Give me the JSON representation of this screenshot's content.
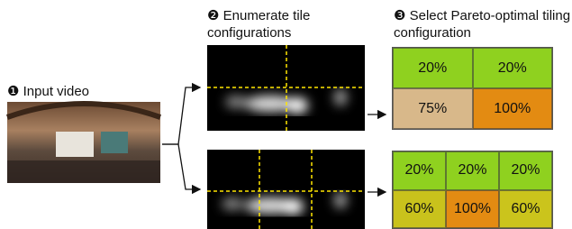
{
  "steps": [
    {
      "marker": "❶",
      "label": "Input video"
    },
    {
      "marker": "❷",
      "label": "Enumerate tile configurations"
    },
    {
      "marker": "❸",
      "label": "Select Pareto-optimal tiling configuration"
    }
  ],
  "grids": [
    {
      "rows": [
        [
          "20%",
          "20%"
        ],
        [
          "75%",
          "100%"
        ]
      ]
    },
    {
      "rows": [
        [
          "20%",
          "20%",
          "20%"
        ],
        [
          "60%",
          "100%",
          "60%"
        ]
      ]
    }
  ]
}
